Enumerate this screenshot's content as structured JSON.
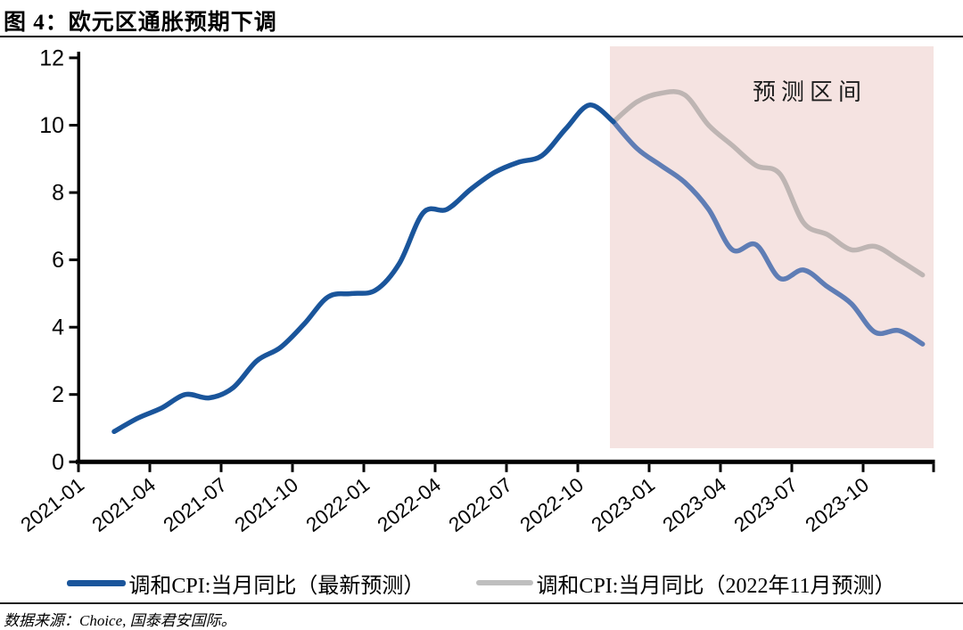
{
  "page": {
    "title": "图 4：欧元区通胀预期下调",
    "source": "数据来源：Choice, 国泰君安国际。"
  },
  "chart_data": {
    "type": "line",
    "title": "欧元区通胀预期下调",
    "unit": "%",
    "y_axis": {
      "min": 0,
      "max": 12,
      "ticks": [
        0,
        2,
        4,
        6,
        8,
        10,
        12
      ]
    },
    "x_axis": {
      "ticks": [
        "2021-01",
        "2021-04",
        "2021-07",
        "2021-10",
        "2022-01",
        "2022-04",
        "2022-07",
        "2022-10",
        "2023-01",
        "2023-04",
        "2023-07",
        "2023-10"
      ]
    },
    "forecast_band": {
      "label": "预测区间",
      "start": "2022-11",
      "end": "2024-01",
      "color": "#f5e3e1"
    },
    "series": [
      {
        "name": "调和CPI:当月同比（最新预测）",
        "color": "#1a559b",
        "forecast_color": "#5f7db5",
        "forecast_start": "2022-11",
        "start": "2021-02",
        "values": [
          0.9,
          1.3,
          1.6,
          2.0,
          1.9,
          2.2,
          3.0,
          3.4,
          4.1,
          4.9,
          5.0,
          5.1,
          5.9,
          7.4,
          7.5,
          8.1,
          8.6,
          8.9,
          9.1,
          9.9,
          10.6,
          10.1,
          9.3,
          8.8,
          8.3,
          7.5,
          6.3,
          6.45,
          5.45,
          5.7,
          5.2,
          4.7,
          3.85,
          3.9,
          3.5
        ]
      },
      {
        "name": "调和CPI:当月同比（2022年11月预测）",
        "color": "#bfbfbf",
        "band_color": "#beb5b3",
        "start": "2022-11",
        "values": [
          10.1,
          10.7,
          10.95,
          10.9,
          10.0,
          9.4,
          8.8,
          8.55,
          7.1,
          6.75,
          6.3,
          6.4,
          6.0,
          5.55
        ]
      }
    ],
    "legend": [
      {
        "label": "调和CPI:当月同比（最新预测）",
        "color": "#1a559b"
      },
      {
        "label": "调和CPI:当月同比（2022年11月预测）",
        "color": "#bfbfbf"
      }
    ]
  }
}
